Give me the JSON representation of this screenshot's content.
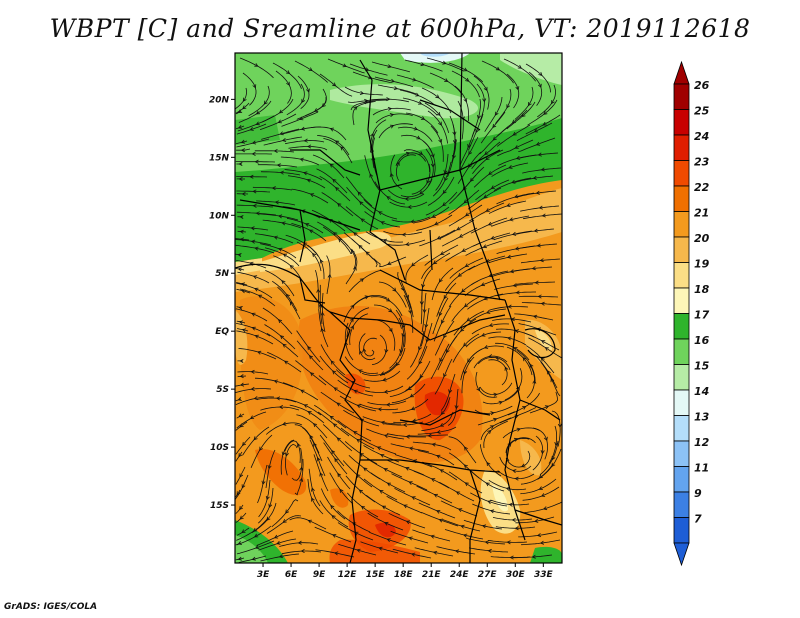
{
  "title": "WBPT [C] and Sreamline at 600hPa, VT: 2019112618",
  "credit": "GrADS: IGES/COLA",
  "map": {
    "lon_range": [
      0,
      35
    ],
    "lat_range": [
      -20,
      24
    ],
    "lat_ticks": [
      {
        "value": 20,
        "label": "20N"
      },
      {
        "value": 15,
        "label": "15N"
      },
      {
        "value": 10,
        "label": "10N"
      },
      {
        "value": 5,
        "label": "5N"
      },
      {
        "value": 0,
        "label": "EQ"
      },
      {
        "value": -5,
        "label": "5S"
      },
      {
        "value": -10,
        "label": "10S"
      },
      {
        "value": -15,
        "label": "15S"
      }
    ],
    "lon_ticks": [
      {
        "value": 3,
        "label": "3E"
      },
      {
        "value": 6,
        "label": "6E"
      },
      {
        "value": 9,
        "label": "9E"
      },
      {
        "value": 12,
        "label": "12E"
      },
      {
        "value": 15,
        "label": "15E"
      },
      {
        "value": 18,
        "label": "18E"
      },
      {
        "value": 21,
        "label": "21E"
      },
      {
        "value": 24,
        "label": "24E"
      },
      {
        "value": 27,
        "label": "27E"
      },
      {
        "value": 30,
        "label": "30E"
      },
      {
        "value": 33,
        "label": "33E"
      }
    ]
  },
  "colorbar": {
    "levels": [
      {
        "label": "26",
        "color": "#a00000"
      },
      {
        "label": "25",
        "color": "#c80000"
      },
      {
        "label": "24",
        "color": "#e01e00"
      },
      {
        "label": "23",
        "color": "#f04a00"
      },
      {
        "label": "22",
        "color": "#f07000"
      },
      {
        "label": "21",
        "color": "#f39a1e"
      },
      {
        "label": "20",
        "color": "#f6b84c"
      },
      {
        "label": "19",
        "color": "#fbde86"
      },
      {
        "label": "18",
        "color": "#fdf6b8"
      },
      {
        "label": "17",
        "color": "#2fb42c"
      },
      {
        "label": "16",
        "color": "#6fd35c"
      },
      {
        "label": "15",
        "color": "#b6eca6"
      },
      {
        "label": "14",
        "color": "#e4f8f6"
      },
      {
        "label": "13",
        "color": "#b4defa"
      },
      {
        "label": "12",
        "color": "#8cc2f6"
      },
      {
        "label": "11",
        "color": "#63a4ef"
      },
      {
        "label": "9",
        "color": "#3c80e4"
      },
      {
        "label": "7",
        "color": "#1e5ed6"
      }
    ],
    "bottom_color": "#1e5ed6",
    "top_color": "#a00000"
  },
  "chart_data": {
    "type": "heatmap",
    "variable": "WBPT [C] at 600hPa",
    "overlay": "streamlines",
    "regions_approx": [
      {
        "area": "north of ~12N",
        "value_range": [
          16,
          17
        ]
      },
      {
        "area": "5N to 12N transition",
        "value_range": [
          18,
          20
        ]
      },
      {
        "area": "equatorial and southern Africa",
        "value_range": [
          21,
          22
        ]
      },
      {
        "area": "patches near 6S 20E-24E and 17S 14E-18E",
        "value_range": [
          23,
          23
        ]
      },
      {
        "area": "southwest corner near 18S 0E-3E",
        "value_range": [
          16,
          17
        ]
      }
    ]
  }
}
